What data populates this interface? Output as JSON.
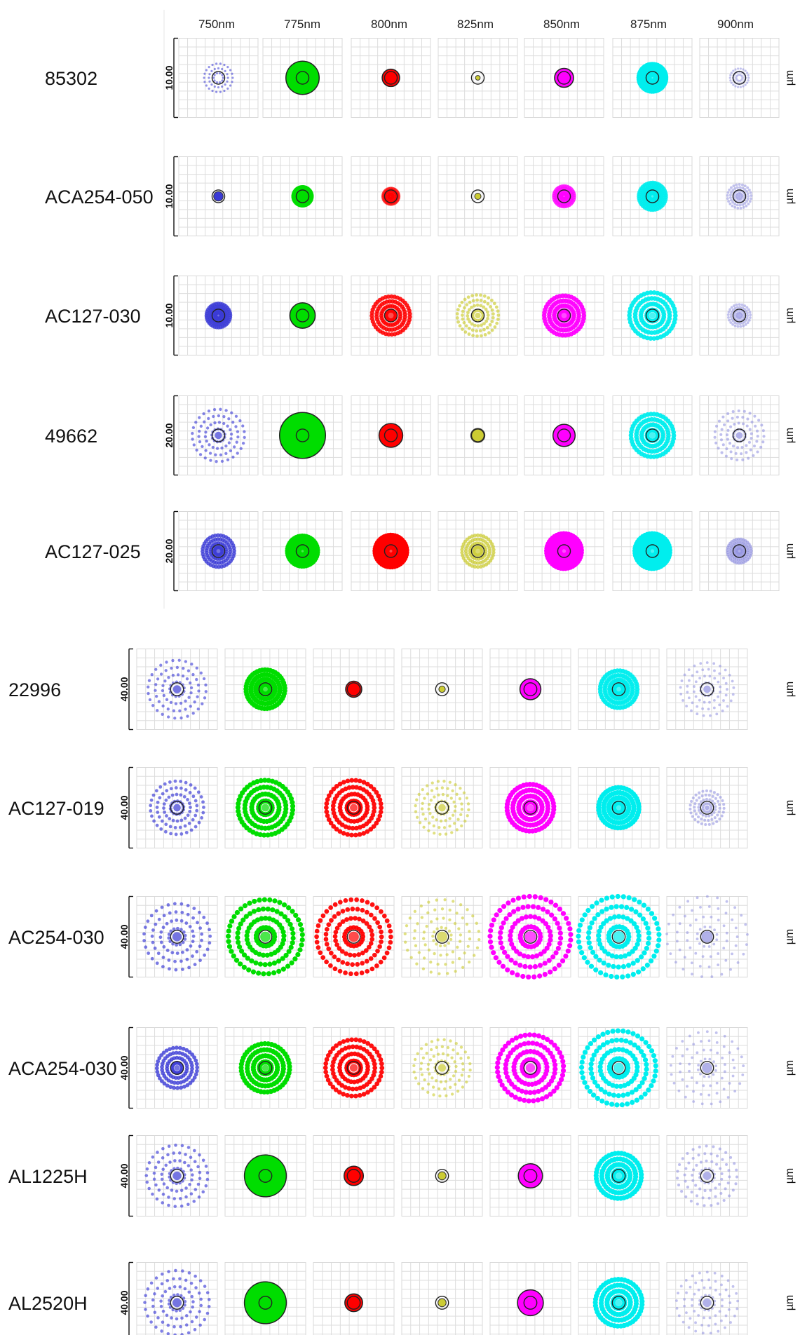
{
  "figure": {
    "wavelengths": [
      "750nm",
      "775nm",
      "800nm",
      "825nm",
      "850nm",
      "875nm",
      "900nm"
    ],
    "unit": "µm",
    "colors": [
      "#3a3ad6",
      "#00dd00",
      "#ff0000",
      "#cccc33",
      "#ff00ff",
      "#00eeee",
      "#9090e0"
    ],
    "rows": [
      {
        "lens": "85302",
        "scale": "10.00",
        "cells": [
          {
            "type": "ring",
            "r": 0.4,
            "fill": 0
          },
          {
            "type": "solid",
            "r": 0.42,
            "fill": 1
          },
          {
            "type": "solid",
            "r": 0.22,
            "fill": 1
          },
          {
            "type": "dot",
            "r": 0.06,
            "fill": 1
          },
          {
            "type": "solid",
            "r": 0.24,
            "fill": 1
          },
          {
            "type": "rings",
            "r": 0.34,
            "fill": 1
          },
          {
            "type": "ring",
            "r": 0.26,
            "fill": 0
          }
        ]
      },
      {
        "lens": "ACA254-050",
        "scale": "10.00",
        "cells": [
          {
            "type": "dot",
            "r": 0.12,
            "fill": 1
          },
          {
            "type": "rings",
            "r": 0.22,
            "fill": 1
          },
          {
            "type": "rings",
            "r": 0.2,
            "fill": 0.5
          },
          {
            "type": "dot",
            "r": 0.08,
            "fill": 1
          },
          {
            "type": "rings",
            "r": 0.26,
            "fill": 0.6
          },
          {
            "type": "rings",
            "r": 0.34,
            "fill": 0.8
          },
          {
            "type": "rings",
            "r": 0.3,
            "fill": 0.3
          }
        ]
      },
      {
        "lens": "AC127-030",
        "scale": "10.00",
        "cells": [
          {
            "type": "rings",
            "r": 0.3,
            "fill": 0.7
          },
          {
            "type": "solid",
            "r": 0.32,
            "fill": 1
          },
          {
            "type": "rings",
            "r": 0.48,
            "fill": 0.8
          },
          {
            "type": "rings",
            "r": 0.52,
            "fill": 0.5
          },
          {
            "type": "rings",
            "r": 0.5,
            "fill": 0.9
          },
          {
            "type": "rings",
            "r": 0.58,
            "fill": 0.9
          },
          {
            "type": "rings",
            "r": 0.28,
            "fill": 0.3
          }
        ]
      },
      {
        "lens": "49662",
        "scale": "20.00",
        "cells": [
          {
            "type": "rings",
            "r": 0.66,
            "fill": 0.4
          },
          {
            "type": "solid",
            "r": 0.58,
            "fill": 1
          },
          {
            "type": "solid",
            "r": 0.3,
            "fill": 1
          },
          {
            "type": "dot",
            "r": 0.18,
            "fill": 1
          },
          {
            "type": "solid",
            "r": 0.28,
            "fill": 1
          },
          {
            "type": "rings",
            "r": 0.54,
            "fill": 0.9
          },
          {
            "type": "rings",
            "r": 0.62,
            "fill": 0.35
          }
        ]
      },
      {
        "lens": "AC127-025",
        "scale": "20.00",
        "cells": [
          {
            "type": "rings",
            "r": 0.4,
            "fill": 0.7
          },
          {
            "type": "rings",
            "r": 0.38,
            "fill": 1
          },
          {
            "type": "rings",
            "r": 0.4,
            "fill": 1
          },
          {
            "type": "rings",
            "r": 0.4,
            "fill": 0.6
          },
          {
            "type": "rings",
            "r": 0.44,
            "fill": 1
          },
          {
            "type": "rings",
            "r": 0.44,
            "fill": 1
          },
          {
            "type": "rings",
            "r": 0.3,
            "fill": 0.5
          }
        ]
      },
      {
        "lens": "22996",
        "scale": "40.00",
        "cells": [
          {
            "type": "rings",
            "r": 0.72,
            "fill": 0.4
          },
          {
            "type": "rings",
            "r": 0.48,
            "fill": 1
          },
          {
            "type": "solid",
            "r": 0.2,
            "fill": 1
          },
          {
            "type": "dot",
            "r": 0.08,
            "fill": 1
          },
          {
            "type": "solid",
            "r": 0.26,
            "fill": 1
          },
          {
            "type": "rings",
            "r": 0.46,
            "fill": 0.9
          },
          {
            "type": "rings",
            "r": 0.66,
            "fill": 0.3
          }
        ]
      },
      {
        "lens": "AC127-019",
        "scale": "40.00",
        "cells": [
          {
            "type": "rings",
            "r": 0.66,
            "fill": 0.5
          },
          {
            "type": "rings",
            "r": 0.68,
            "fill": 1
          },
          {
            "type": "rings",
            "r": 0.68,
            "fill": 0.9
          },
          {
            "type": "rings",
            "r": 0.66,
            "fill": 0.4
          },
          {
            "type": "rings",
            "r": 0.58,
            "fill": 1
          },
          {
            "type": "rings",
            "r": 0.5,
            "fill": 1
          },
          {
            "type": "rings",
            "r": 0.42,
            "fill": 0.35
          }
        ]
      },
      {
        "lens": "AC254-030",
        "scale": "40.00",
        "cells": [
          {
            "type": "rings",
            "r": 0.82,
            "fill": 0.5
          },
          {
            "type": "rings",
            "r": 0.92,
            "fill": 1
          },
          {
            "type": "rings",
            "r": 0.92,
            "fill": 0.9
          },
          {
            "type": "rings",
            "r": 0.92,
            "fill": 0.4
          },
          {
            "type": "rings",
            "r": 1.0,
            "fill": 1
          },
          {
            "type": "rings",
            "r": 1.0,
            "fill": 1
          },
          {
            "type": "rings",
            "r": 1.0,
            "fill": 0.3
          }
        ]
      },
      {
        "lens": "ACA254-030",
        "scale": "40.00",
        "cells": [
          {
            "type": "rings",
            "r": 0.5,
            "fill": 0.7
          },
          {
            "type": "rings",
            "r": 0.6,
            "fill": 1
          },
          {
            "type": "rings",
            "r": 0.7,
            "fill": 0.9
          },
          {
            "type": "rings",
            "r": 0.7,
            "fill": 0.4
          },
          {
            "type": "rings",
            "r": 0.82,
            "fill": 1
          },
          {
            "type": "rings",
            "r": 0.92,
            "fill": 1
          },
          {
            "type": "rings",
            "r": 0.9,
            "fill": 0.3
          }
        ]
      },
      {
        "lens": "AL1225H",
        "scale": "40.00",
        "cells": [
          {
            "type": "rings",
            "r": 0.76,
            "fill": 0.45
          },
          {
            "type": "solid",
            "r": 0.52,
            "fill": 1
          },
          {
            "type": "solid",
            "r": 0.24,
            "fill": 1
          },
          {
            "type": "dot",
            "r": 0.1,
            "fill": 1
          },
          {
            "type": "solid",
            "r": 0.3,
            "fill": 1
          },
          {
            "type": "rings",
            "r": 0.56,
            "fill": 1
          },
          {
            "type": "rings",
            "r": 0.74,
            "fill": 0.35
          }
        ]
      },
      {
        "lens": "AL2520H",
        "scale": "40.00",
        "cells": [
          {
            "type": "rings",
            "r": 0.8,
            "fill": 0.45
          },
          {
            "type": "solid",
            "r": 0.52,
            "fill": 1
          },
          {
            "type": "solid",
            "r": 0.22,
            "fill": 1
          },
          {
            "type": "dot",
            "r": 0.1,
            "fill": 1
          },
          {
            "type": "solid",
            "r": 0.32,
            "fill": 1
          },
          {
            "type": "rings",
            "r": 0.58,
            "fill": 1
          },
          {
            "type": "rings",
            "r": 0.76,
            "fill": 0.3
          }
        ]
      }
    ]
  }
}
